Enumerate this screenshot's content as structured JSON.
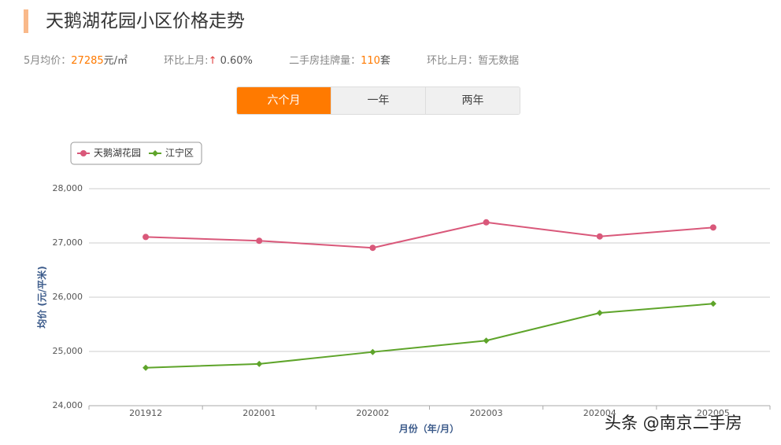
{
  "header": {
    "title": "天鹅湖花园小区价格走势",
    "stats": [
      {
        "label": "5月均价：",
        "value": "27285",
        "unit": "元/㎡"
      },
      {
        "label": "环比上月:",
        "arrow": "↑",
        "value": "0.60%"
      },
      {
        "label": "二手房挂牌量：",
        "value": "110",
        "unit": "套"
      },
      {
        "label": "环比上月：",
        "value": "暂无数据"
      }
    ]
  },
  "tabs": [
    "六个月",
    "一年",
    "两年"
  ],
  "watermark": "头条 @南京二手房",
  "chart_data": {
    "type": "line",
    "x_label": "月份（年/月）",
    "y_label": "均价 (元/平米)",
    "categories": [
      "201912",
      "202001",
      "202002",
      "202003",
      "202004",
      "202005"
    ],
    "series": [
      {
        "name": "天鹅湖花园",
        "color": "#d9587a",
        "marker": "circle",
        "values": [
          27110,
          27040,
          26910,
          27380,
          27120,
          27285
        ]
      },
      {
        "name": "江宁区",
        "color": "#5ea42a",
        "marker": "diamond",
        "values": [
          24700,
          24770,
          24990,
          25200,
          25710,
          25880
        ]
      }
    ],
    "ylim": [
      24000,
      28000
    ],
    "yticks": [
      {
        "value": 24000,
        "label": "24,000"
      },
      {
        "value": 25000,
        "label": "25,000"
      },
      {
        "value": 26000,
        "label": "26,000"
      },
      {
        "value": 27000,
        "label": "27,000"
      },
      {
        "value": 28000,
        "label": "28,000"
      }
    ],
    "grid": true,
    "legend": "top-left"
  }
}
